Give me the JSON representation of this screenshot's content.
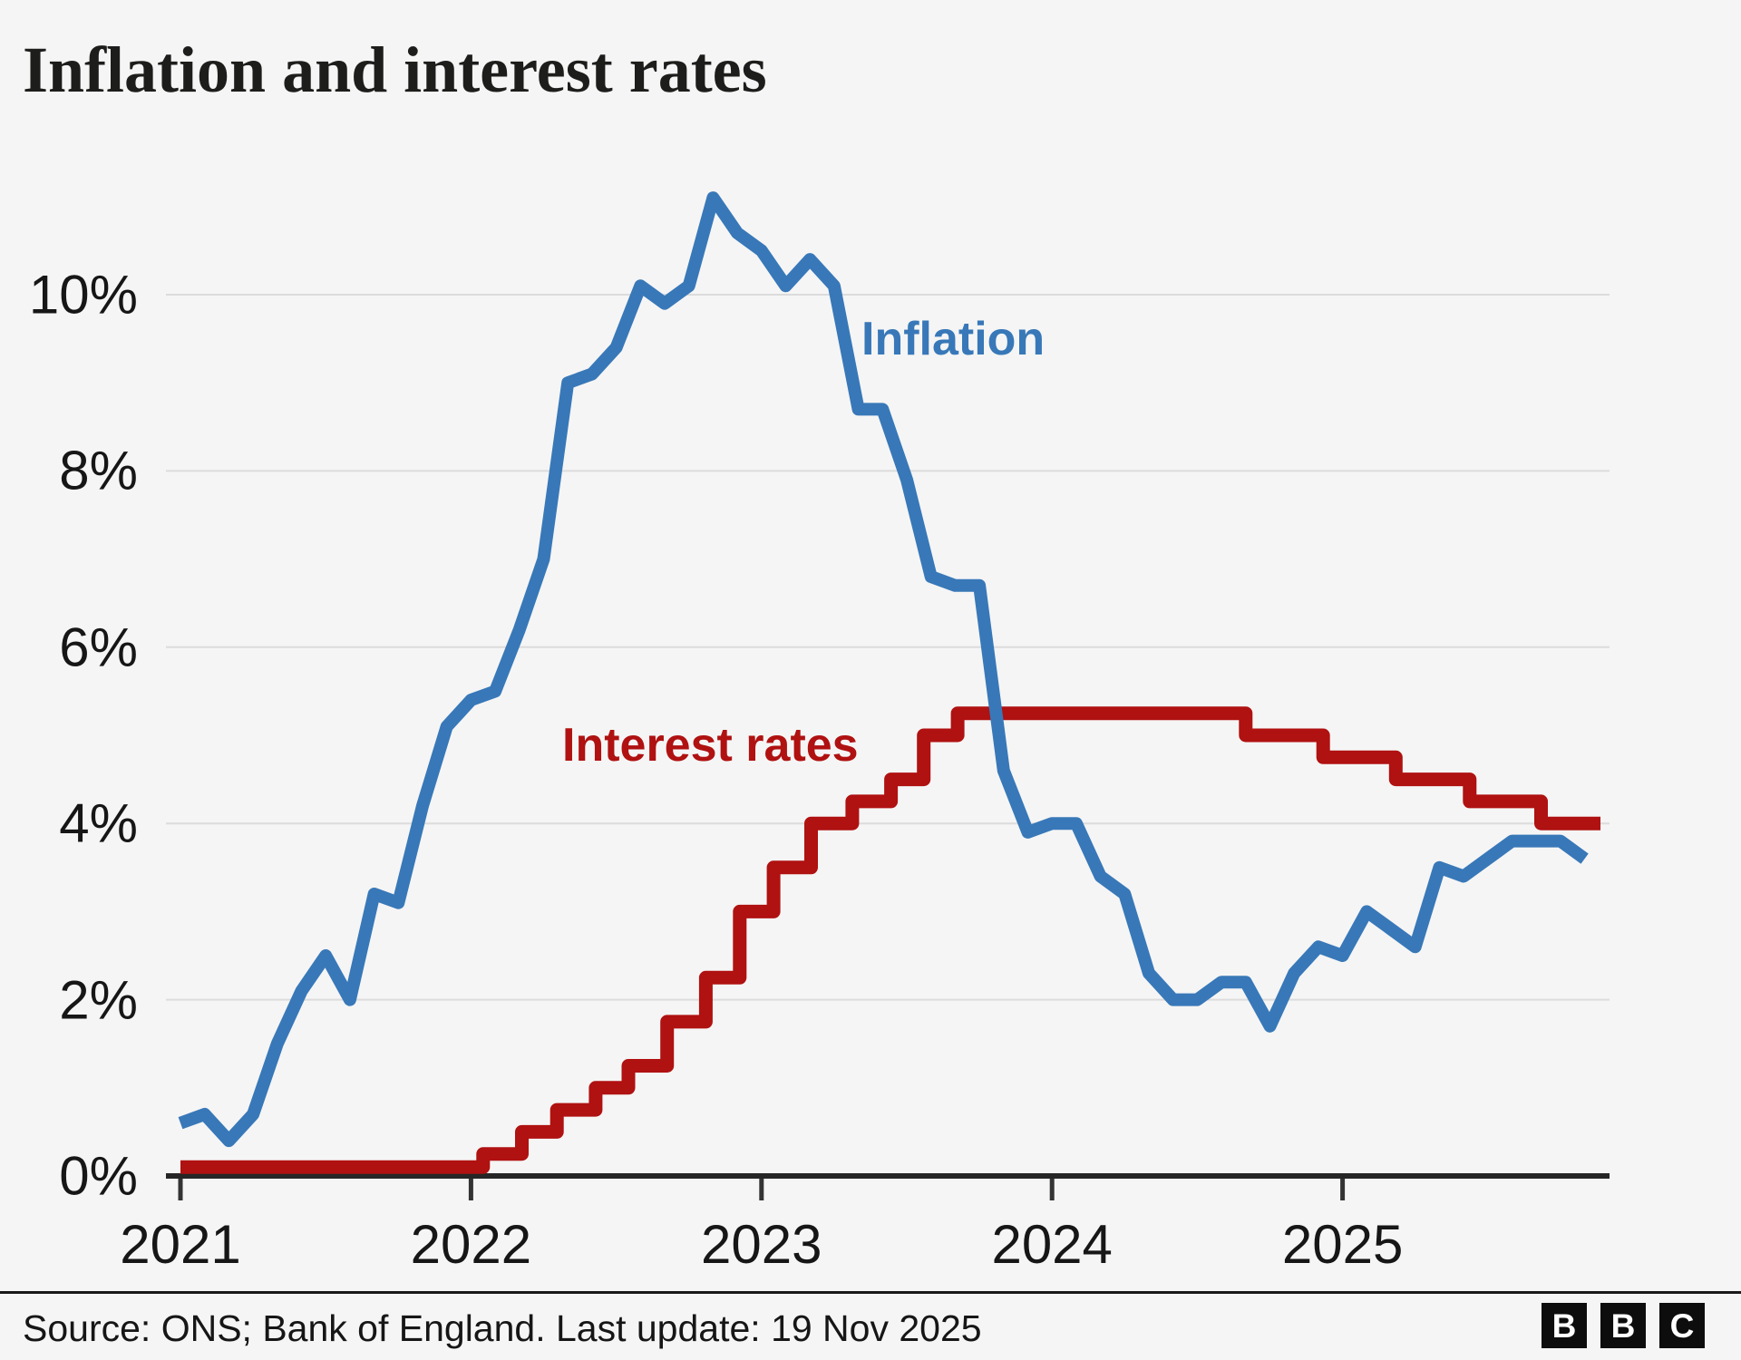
{
  "header": {
    "title": "Inflation and interest rates"
  },
  "footer": {
    "source": "Source: ONS; Bank of England. Last update: 19 Nov 2025",
    "logo_letters": [
      "B",
      "B",
      "C"
    ]
  },
  "colors": {
    "background": "#f5f5f5",
    "inflation_blue": "#3878b8",
    "interest_red": "#b01111",
    "gridline": "#dcdcdc",
    "axis": "#262626",
    "tick": "#333333",
    "title_text": "#1d1d1b",
    "tick_text": "#161616",
    "divider": "#1a1a1a"
  },
  "chart_data": {
    "type": "line",
    "title": "Inflation and interest rates",
    "xlabel": "",
    "ylabel": "",
    "x_tick_labels": [
      "2021",
      "2022",
      "2023",
      "2024",
      "2025"
    ],
    "y_tick_labels": [
      "0%",
      "2%",
      "4%",
      "6%",
      "8%",
      "10%"
    ],
    "ylim": [
      0,
      11.6
    ],
    "grid": "horizontal-only",
    "legend_position": "inline-annotations",
    "x_range": "Dec 2020 - Nov 2025, monthly",
    "series": [
      {
        "name": "Inflation",
        "type": "line",
        "color": "#3878b8",
        "start_month": "Dec 2020",
        "frequency": "monthly",
        "unit": "% CPI annual rate",
        "values": [
          0.6,
          0.7,
          0.4,
          0.7,
          1.5,
          2.1,
          2.5,
          2.0,
          3.2,
          3.1,
          4.2,
          5.1,
          5.4,
          5.5,
          6.2,
          7.0,
          9.0,
          9.1,
          9.4,
          10.1,
          9.9,
          10.1,
          11.1,
          10.7,
          10.5,
          10.1,
          10.4,
          10.1,
          8.7,
          8.7,
          7.9,
          6.8,
          6.7,
          6.7,
          4.6,
          3.9,
          4.0,
          4.0,
          3.4,
          3.2,
          2.3,
          2.0,
          2.0,
          2.2,
          2.2,
          1.7,
          2.3,
          2.6,
          2.5,
          3.0,
          2.8,
          2.6,
          3.5,
          3.4,
          3.6,
          3.8,
          3.8,
          3.8,
          3.6
        ]
      },
      {
        "name": "Interest rates",
        "type": "step",
        "color": "#b01111",
        "unit": "% Bank rate",
        "points": [
          [
            0,
            0.1
          ],
          [
            12.5,
            0.25
          ],
          [
            14.1,
            0.5
          ],
          [
            15.55,
            0.75
          ],
          [
            17.15,
            1.0
          ],
          [
            18.5,
            1.25
          ],
          [
            20.1,
            1.75
          ],
          [
            21.7,
            2.25
          ],
          [
            23.1,
            3.0
          ],
          [
            24.5,
            3.5
          ],
          [
            26.05,
            4.0
          ],
          [
            27.75,
            4.25
          ],
          [
            29.35,
            4.5
          ],
          [
            30.7,
            5.0
          ],
          [
            32.1,
            5.25
          ],
          [
            44.0,
            5.0
          ],
          [
            47.2,
            4.75
          ],
          [
            50.2,
            4.5
          ],
          [
            53.25,
            4.25
          ],
          [
            56.2,
            4.0
          ]
        ],
        "end_month_index": 58.65
      }
    ],
    "annotations": [
      {
        "text": "Inflation",
        "color": "#3878b8"
      },
      {
        "text": "Interest rates",
        "color": "#b01111"
      }
    ]
  }
}
